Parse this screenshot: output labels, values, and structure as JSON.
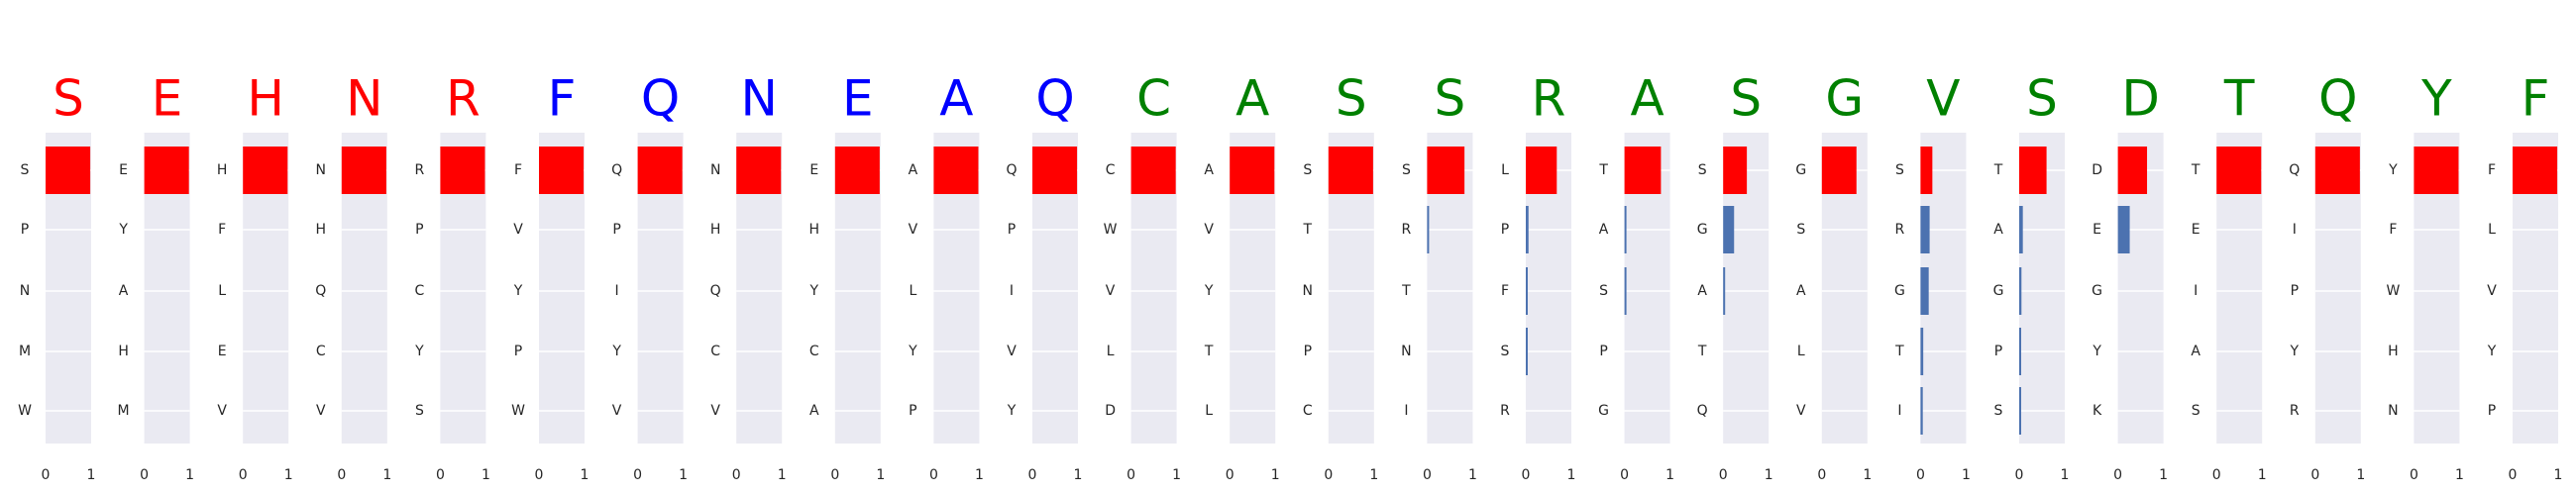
{
  "chart_data": {
    "type": "bar",
    "orientation": "horizontal",
    "xlim": [
      0,
      1
    ],
    "x_ticks": [
      "0",
      "1"
    ],
    "grid": true,
    "colors": {
      "red": "#ff0000",
      "blue": "#0000ff",
      "green": "#008000",
      "bar_top": "#ff0000",
      "bar_other": "#4c72b0",
      "panel_bg": "#eaeaf2",
      "grid": "#ffffff"
    },
    "panels": [
      {
        "letter": "S",
        "color": "red",
        "labels": [
          "S",
          "P",
          "N",
          "M",
          "W"
        ],
        "values": [
          0.98,
          0.0,
          0.0,
          0.0,
          0.0
        ]
      },
      {
        "letter": "E",
        "color": "red",
        "labels": [
          "E",
          "Y",
          "A",
          "H",
          "M"
        ],
        "values": [
          0.98,
          0.0,
          0.0,
          0.0,
          0.0
        ]
      },
      {
        "letter": "H",
        "color": "red",
        "labels": [
          "H",
          "F",
          "L",
          "E",
          "V"
        ],
        "values": [
          0.98,
          0.0,
          0.0,
          0.0,
          0.0
        ]
      },
      {
        "letter": "N",
        "color": "red",
        "labels": [
          "N",
          "H",
          "Q",
          "C",
          "V"
        ],
        "values": [
          0.98,
          0.0,
          0.0,
          0.0,
          0.0
        ]
      },
      {
        "letter": "R",
        "color": "red",
        "labels": [
          "R",
          "P",
          "C",
          "Y",
          "S"
        ],
        "values": [
          0.98,
          0.0,
          0.0,
          0.0,
          0.0
        ]
      },
      {
        "letter": "F",
        "color": "blue",
        "labels": [
          "F",
          "V",
          "Y",
          "P",
          "W"
        ],
        "values": [
          0.98,
          0.0,
          0.0,
          0.0,
          0.0
        ]
      },
      {
        "letter": "Q",
        "color": "blue",
        "labels": [
          "Q",
          "P",
          "I",
          "Y",
          "V"
        ],
        "values": [
          0.98,
          0.0,
          0.0,
          0.0,
          0.0
        ]
      },
      {
        "letter": "N",
        "color": "blue",
        "labels": [
          "N",
          "H",
          "Q",
          "C",
          "V"
        ],
        "values": [
          0.98,
          0.0,
          0.0,
          0.0,
          0.0
        ]
      },
      {
        "letter": "E",
        "color": "blue",
        "labels": [
          "E",
          "H",
          "Y",
          "C",
          "A"
        ],
        "values": [
          0.98,
          0.0,
          0.0,
          0.0,
          0.0
        ]
      },
      {
        "letter": "A",
        "color": "blue",
        "labels": [
          "A",
          "V",
          "L",
          "Y",
          "P"
        ],
        "values": [
          0.98,
          0.0,
          0.0,
          0.0,
          0.0
        ]
      },
      {
        "letter": "Q",
        "color": "blue",
        "labels": [
          "Q",
          "P",
          "I",
          "V",
          "Y"
        ],
        "values": [
          0.98,
          0.0,
          0.0,
          0.0,
          0.0
        ]
      },
      {
        "letter": "C",
        "color": "green",
        "labels": [
          "C",
          "W",
          "V",
          "L",
          "D"
        ],
        "values": [
          0.98,
          0.0,
          0.0,
          0.0,
          0.0
        ]
      },
      {
        "letter": "A",
        "color": "green",
        "labels": [
          "A",
          "V",
          "Y",
          "T",
          "L"
        ],
        "values": [
          0.98,
          0.0,
          0.0,
          0.0,
          0.0
        ]
      },
      {
        "letter": "S",
        "color": "green",
        "labels": [
          "S",
          "T",
          "N",
          "P",
          "C"
        ],
        "values": [
          0.98,
          0.0,
          0.0,
          0.0,
          0.0
        ]
      },
      {
        "letter": "S",
        "color": "green",
        "labels": [
          "S",
          "R",
          "T",
          "N",
          "I"
        ],
        "values": [
          0.82,
          0.02,
          0.0,
          0.0,
          0.0
        ]
      },
      {
        "letter": "R",
        "color": "green",
        "labels": [
          "L",
          "P",
          "F",
          "S",
          "R"
        ],
        "values": [
          0.68,
          0.06,
          0.03,
          0.02,
          0.0
        ]
      },
      {
        "letter": "A",
        "color": "green",
        "labels": [
          "T",
          "A",
          "S",
          "P",
          "G"
        ],
        "values": [
          0.8,
          0.04,
          0.02,
          0.0,
          0.0
        ]
      },
      {
        "letter": "S",
        "color": "green",
        "labels": [
          "S",
          "G",
          "A",
          "T",
          "Q"
        ],
        "values": [
          0.52,
          0.24,
          0.03,
          0.0,
          0.0
        ]
      },
      {
        "letter": "G",
        "color": "green",
        "labels": [
          "G",
          "S",
          "A",
          "L",
          "V"
        ],
        "values": [
          0.76,
          0.0,
          0.0,
          0.0,
          0.0
        ]
      },
      {
        "letter": "V",
        "color": "green",
        "labels": [
          "S",
          "R",
          "G",
          "T",
          "I"
        ],
        "values": [
          0.26,
          0.2,
          0.18,
          0.06,
          0.05
        ]
      },
      {
        "letter": "S",
        "color": "green",
        "labels": [
          "T",
          "A",
          "G",
          "P",
          "S"
        ],
        "values": [
          0.6,
          0.08,
          0.05,
          0.04,
          0.04
        ]
      },
      {
        "letter": "D",
        "color": "green",
        "labels": [
          "D",
          "E",
          "G",
          "Y",
          "K"
        ],
        "values": [
          0.64,
          0.26,
          0.0,
          0.0,
          0.0
        ]
      },
      {
        "letter": "T",
        "color": "green",
        "labels": [
          "T",
          "E",
          "I",
          "A",
          "S"
        ],
        "values": [
          0.98,
          0.0,
          0.0,
          0.0,
          0.0
        ]
      },
      {
        "letter": "Q",
        "color": "green",
        "labels": [
          "Q",
          "I",
          "P",
          "Y",
          "R"
        ],
        "values": [
          0.98,
          0.0,
          0.0,
          0.0,
          0.0
        ]
      },
      {
        "letter": "Y",
        "color": "green",
        "labels": [
          "Y",
          "F",
          "W",
          "H",
          "N"
        ],
        "values": [
          0.98,
          0.0,
          0.0,
          0.0,
          0.0
        ]
      },
      {
        "letter": "F",
        "color": "green",
        "labels": [
          "F",
          "L",
          "V",
          "Y",
          "P"
        ],
        "values": [
          0.98,
          0.0,
          0.0,
          0.0,
          0.0
        ]
      }
    ]
  }
}
